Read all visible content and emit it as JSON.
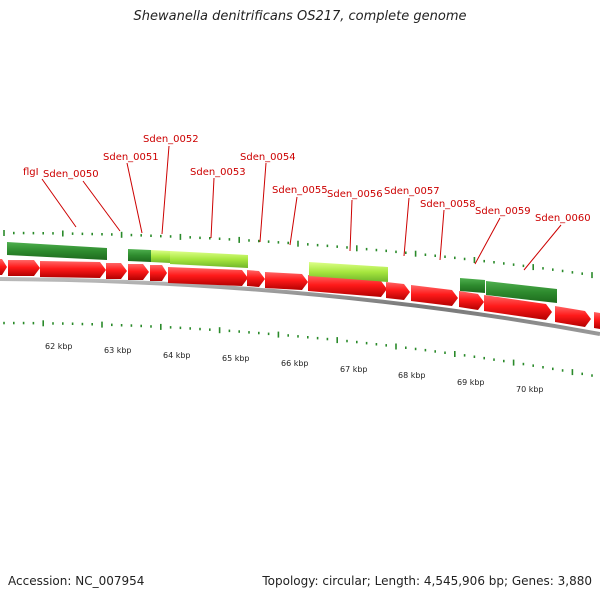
{
  "title": "Shewanella denitrificans OS217, complete genome",
  "footer": {
    "accession": "Accession: NC_007954",
    "summary": "Topology: circular; Length: 4,545,906 bp; Genes: 3,880"
  },
  "colors": {
    "forward_gene": "#ff0000",
    "reverse_gene": "#2e8b2e",
    "highlight_gene": "#aaee44",
    "label": "#cc0000",
    "tick": "#2a8a2a",
    "backbone": "#808080"
  },
  "gene_labels": [
    "flgI",
    "Sden_0050",
    "Sden_0051",
    "Sden_0052",
    "Sden_0053",
    "Sden_0054",
    "Sden_0055",
    "Sden_0056",
    "Sden_0057",
    "Sden_0058",
    "Sden_0059",
    "Sden_0060"
  ],
  "kbp_labels": [
    "62 kbp",
    "63 kbp",
    "64 kbp",
    "65 kbp",
    "66 kbp",
    "67 kbp",
    "68 kbp",
    "69 kbp",
    "70 kbp"
  ]
}
